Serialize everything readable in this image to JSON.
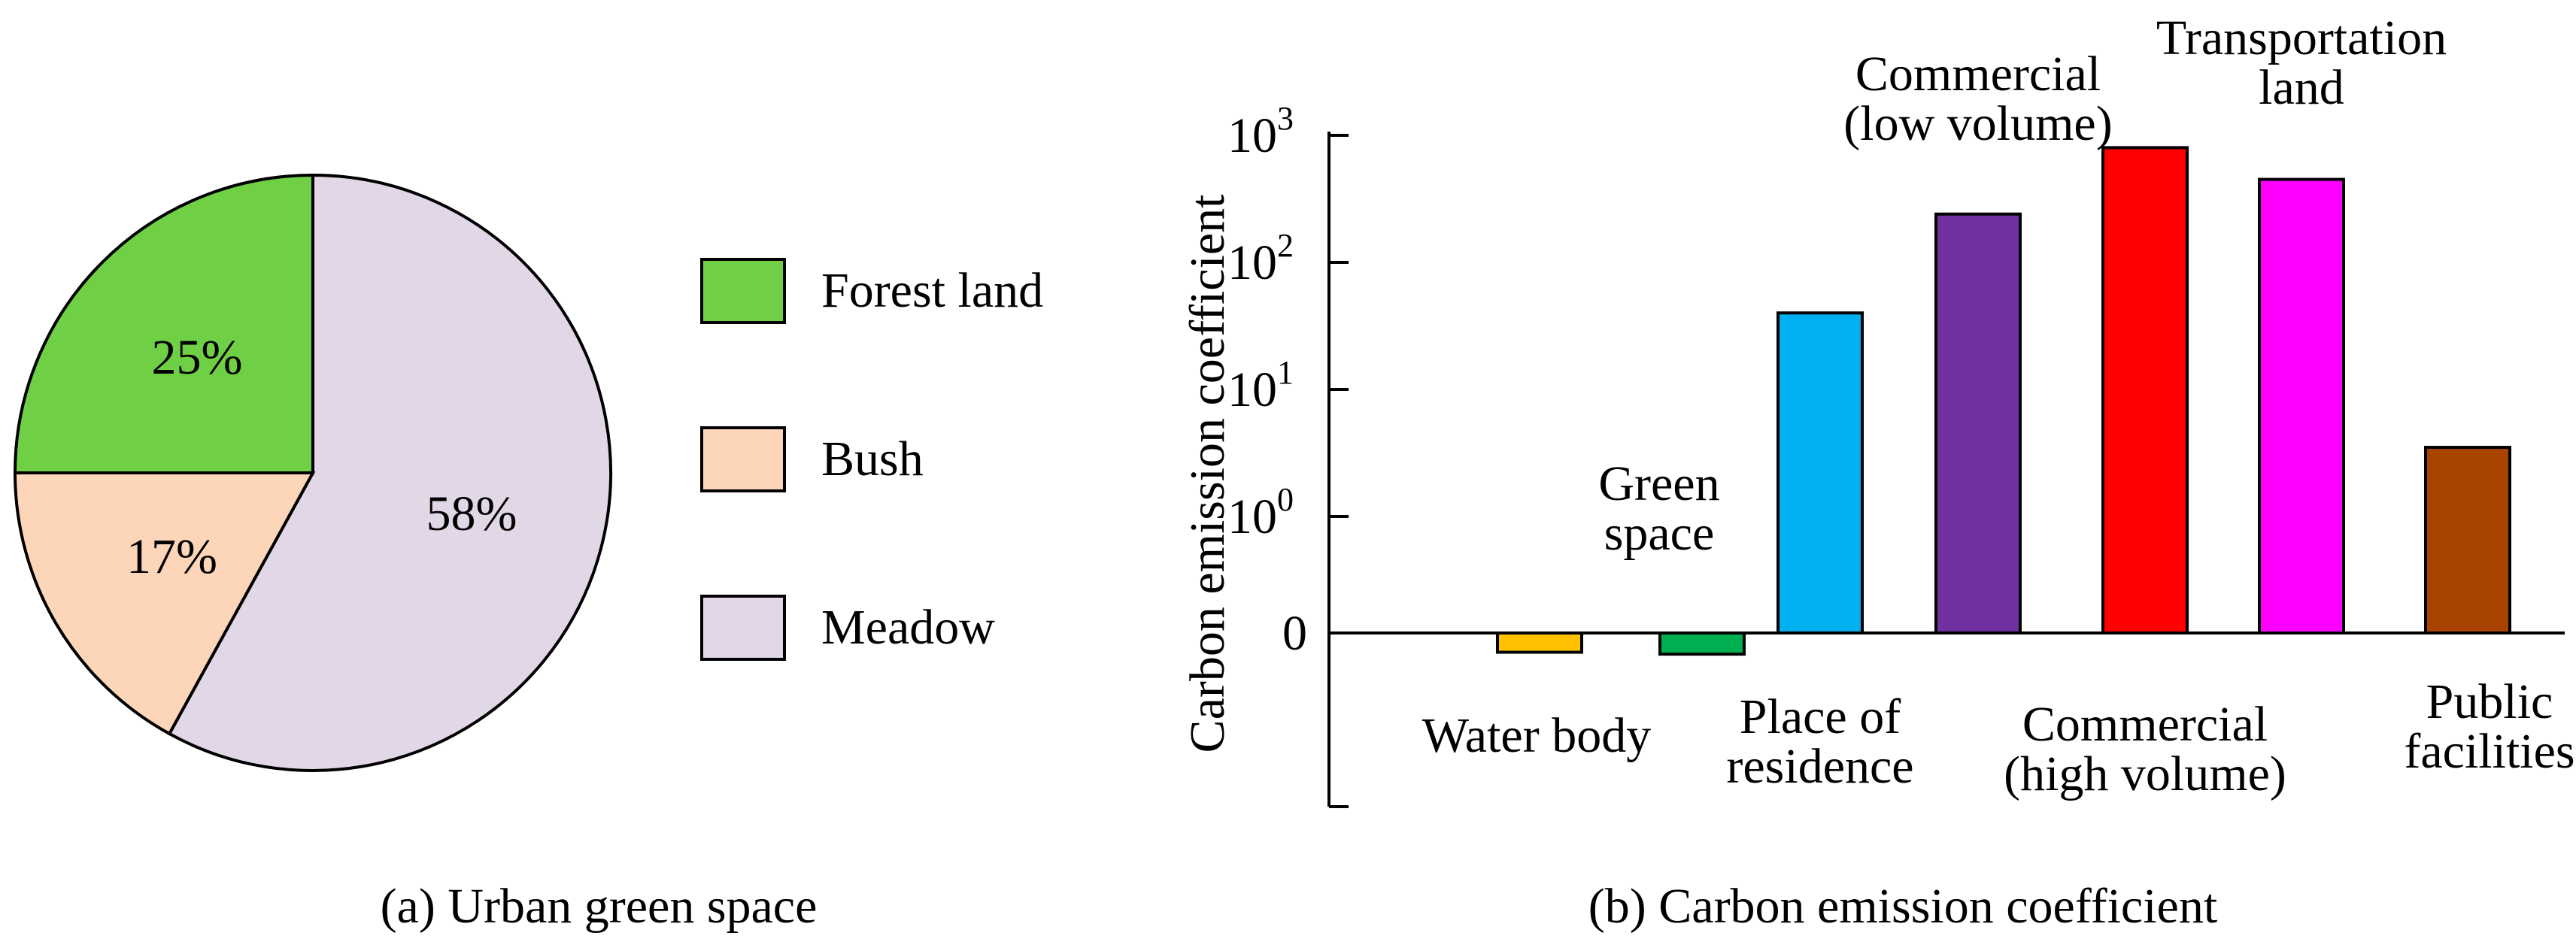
{
  "chart_data": [
    {
      "type": "pie",
      "caption": "(a) Urban green space",
      "legend_placement": "right",
      "slices": [
        {
          "name": "Forest land",
          "value": 25,
          "label": "25%",
          "color": "#6fcf45"
        },
        {
          "name": "Bush",
          "value": 17,
          "label": "17%",
          "color": "#fdd5b8"
        },
        {
          "name": "Meadow",
          "value": 58,
          "label": "58%",
          "color": "#e1d7e6"
        }
      ]
    },
    {
      "type": "bar",
      "caption": "(b)  Carbon emission coefficient",
      "ylabel": "Carbon emission coefficient",
      "yscale": "symlog",
      "yticks": [
        {
          "value": 0,
          "label": "0"
        },
        {
          "value": 1,
          "base": "10",
          "exp": "0"
        },
        {
          "value": 10,
          "base": "10",
          "exp": "1"
        },
        {
          "value": 100,
          "base": "10",
          "exp": "2"
        },
        {
          "value": 1000,
          "base": "10",
          "exp": "3"
        }
      ],
      "grid": false,
      "categories": [
        {
          "lines": [
            "Water body"
          ],
          "value": -0.3,
          "color": "#ffc000",
          "label_side": "below"
        },
        {
          "lines": [
            "Green",
            "space"
          ],
          "value": -0.33,
          "color": "#00b050",
          "label_side": "above"
        },
        {
          "lines": [
            "Place of",
            "residence"
          ],
          "value": 40,
          "color": "#00b0f0",
          "label_side": "below"
        },
        {
          "lines": [
            "Commercial",
            "(low volume)"
          ],
          "value": 240,
          "color": "#7030a0",
          "label_side": "above"
        },
        {
          "lines": [
            "Commercial",
            "(high volume)"
          ],
          "value": 800,
          "color": "#ff0000",
          "label_side": "below"
        },
        {
          "lines": [
            "Transportation",
            "land"
          ],
          "value": 450,
          "color": "#ff00ff",
          "label_side": "above"
        },
        {
          "lines": [
            "Public",
            "facilities"
          ],
          "value": 3.5,
          "color": "#a84300",
          "label_side": "below"
        }
      ]
    }
  ]
}
